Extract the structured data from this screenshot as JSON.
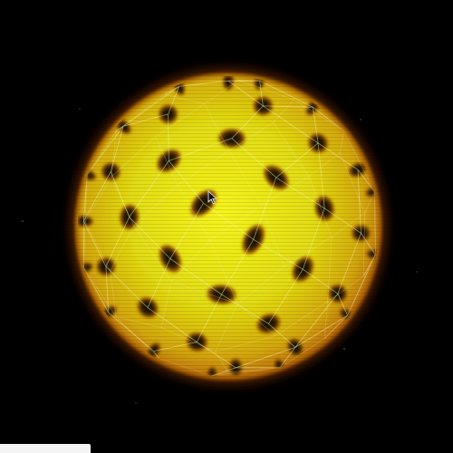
{
  "scene": {
    "subject": "glowing-sphere",
    "colors": {
      "background": "#000000",
      "sphere_core": "#f2f019",
      "sphere_mid": "#d8c60e",
      "sphere_edge": "#c27a05",
      "outer_glow": "#b8500a",
      "hole": "#1e1503",
      "hole_rim": "#d2820c",
      "wire": "#f6f6a8"
    },
    "icons": [
      "cursor-arrow-icon"
    ]
  }
}
